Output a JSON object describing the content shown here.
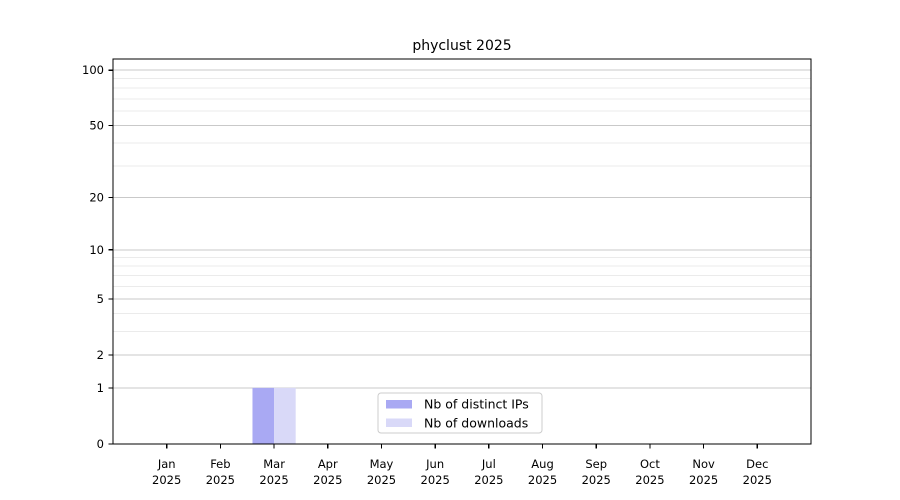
{
  "chart_data": {
    "type": "bar",
    "title": "phyclust 2025",
    "categories": [
      "Jan 2025",
      "Feb 2025",
      "Mar 2025",
      "Apr 2025",
      "May 2025",
      "Jun 2025",
      "Jul 2025",
      "Aug 2025",
      "Sep 2025",
      "Oct 2025",
      "Nov 2025",
      "Dec 2025"
    ],
    "series": [
      {
        "name": "Nb of distinct IPs",
        "color": "#a9a9f3",
        "values": [
          0,
          0,
          1,
          0,
          0,
          0,
          0,
          0,
          0,
          0,
          0,
          0
        ]
      },
      {
        "name": "Nb of downloads",
        "color": "#d9d9f8",
        "values": [
          0,
          0,
          1,
          0,
          0,
          0,
          0,
          0,
          0,
          0,
          0,
          0
        ]
      }
    ],
    "xlabel": "",
    "ylabel": "",
    "yscale": "log1p",
    "ylim": [
      0,
      115
    ],
    "yticks": [
      0,
      1,
      2,
      5,
      10,
      20,
      50,
      100
    ],
    "yticks_minor": [
      3,
      4,
      6,
      7,
      8,
      9,
      30,
      40,
      60,
      70,
      80,
      90
    ],
    "grid": {
      "on": true,
      "major_color": "#c9c9c9",
      "minor_color": "#ebebeb"
    },
    "axis_color": "#000000",
    "legend": {
      "position": "inside-bottom-center",
      "entries": [
        "Nb of distinct IPs",
        "Nb of downloads"
      ]
    }
  }
}
